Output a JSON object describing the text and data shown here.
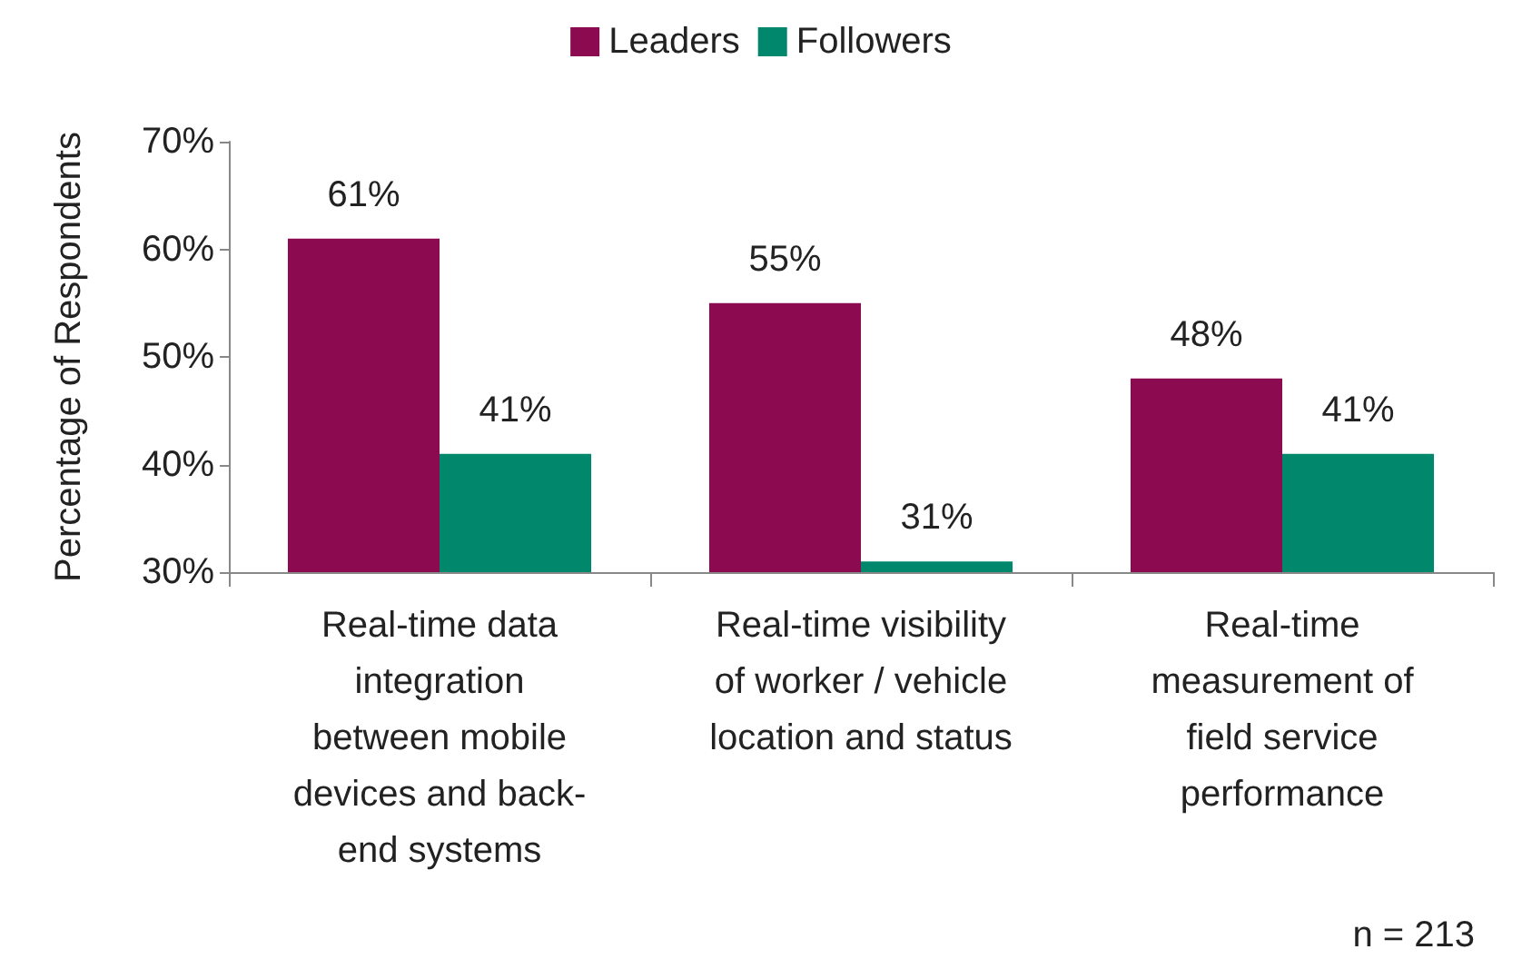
{
  "chart_data": {
    "type": "bar",
    "ylabel": "Percentage of Respondents",
    "categories": [
      "Real-time data\nintegration\nbetween mobile\ndevices and back-\nend systems",
      "Real-time visibility\nof worker / vehicle\nlocation and status",
      "Real-time\nmeasurement of\nfield service\nperformance"
    ],
    "series": [
      {
        "name": "Leaders",
        "color": "#8c0a4f",
        "values": [
          61,
          55,
          48
        ],
        "value_labels": [
          "61%",
          "55%",
          "48%"
        ]
      },
      {
        "name": "Followers",
        "color": "#00876c",
        "values": [
          41,
          31,
          41
        ],
        "value_labels": [
          "41%",
          "31%",
          "41%"
        ]
      }
    ],
    "ylim": [
      30,
      70
    ],
    "yticks": [
      {
        "value": 30,
        "label": "30%"
      },
      {
        "value": 40,
        "label": "40%"
      },
      {
        "value": 50,
        "label": "50%"
      },
      {
        "value": 60,
        "label": "60%"
      },
      {
        "value": 70,
        "label": "70%"
      }
    ],
    "grid": false,
    "legend": "top",
    "annotations": [
      "n = 213"
    ]
  }
}
